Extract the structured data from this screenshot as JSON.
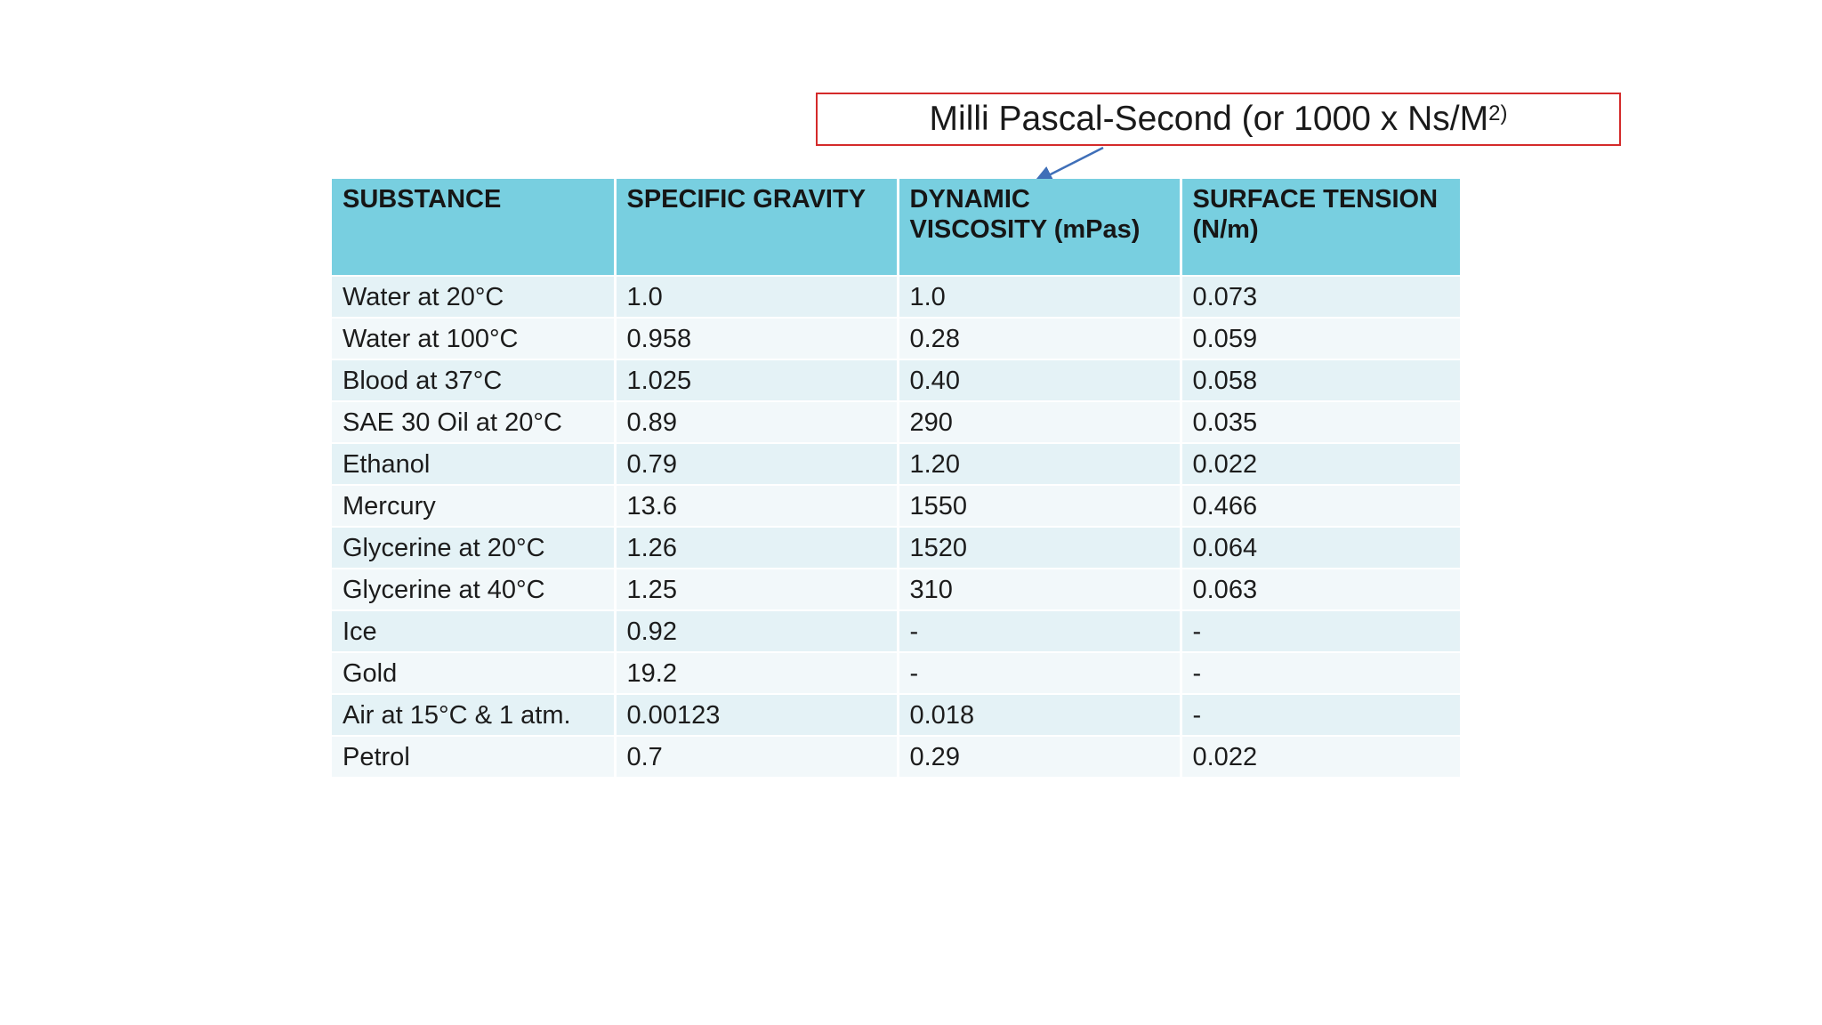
{
  "annotation": {
    "text": "Milli Pascal-Second (or 1000 x Ns/M",
    "superscript": "2)"
  },
  "table": {
    "headers": [
      "SUBSTANCE",
      "SPECIFIC GRAVITY",
      "DYNAMIC VISCOSITY (mPas)",
      "SURFACE TENSION (N/m)"
    ],
    "rows": [
      [
        "Water at 20°C",
        "1.0",
        "1.0",
        "0.073"
      ],
      [
        "Water at 100°C",
        "0.958",
        "0.28",
        "0.059"
      ],
      [
        "Blood at 37°C",
        "1.025",
        "0.40",
        "0.058"
      ],
      [
        "SAE  30 Oil at 20°C",
        "0.89",
        "290",
        "0.035"
      ],
      [
        "Ethanol",
        "0.79",
        "1.20",
        "0.022"
      ],
      [
        "Mercury",
        "13.6",
        "1550",
        "0.466"
      ],
      [
        "Glycerine at 20°C",
        "1.26",
        "1520",
        "0.064"
      ],
      [
        "Glycerine at 40°C",
        "1.25",
        "310",
        "0.063"
      ],
      [
        "Ice",
        "0.92",
        "-",
        "-"
      ],
      [
        "Gold",
        "19.2",
        "-",
        "-"
      ],
      [
        "Air at 15°C & 1 atm.",
        "0.00123",
        "0.018",
        "-"
      ],
      [
        "Petrol",
        "0.7",
        "0.29",
        "0.022"
      ]
    ]
  },
  "colors": {
    "header_bg": "#78cfe0",
    "row_odd_bg": "#e4f2f6",
    "row_even_bg": "#f2f8fa",
    "callout_border": "#d42a2a",
    "arrow": "#3f6fb8"
  }
}
